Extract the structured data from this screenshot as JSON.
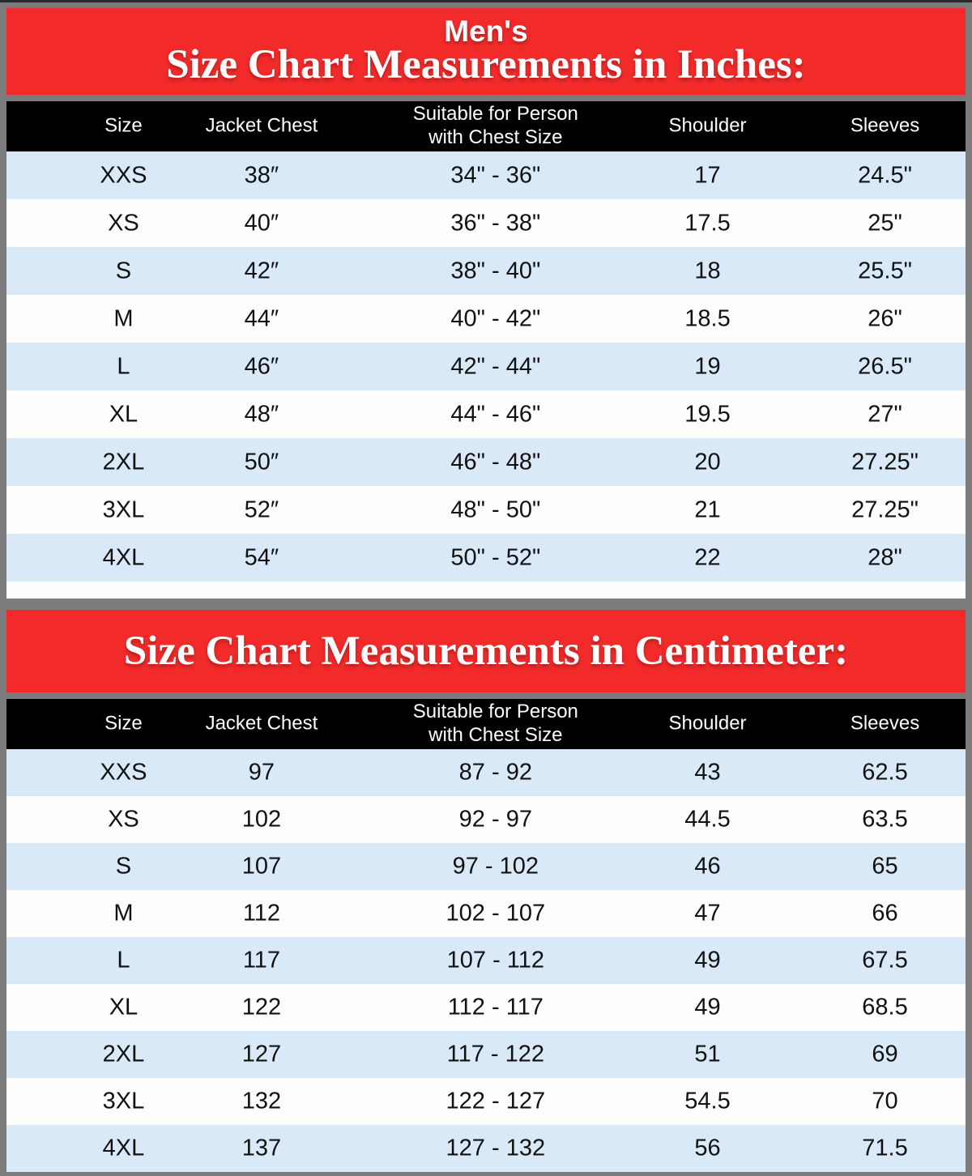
{
  "colors": {
    "frame_gray": "#7b7b7b",
    "top_edge": "#2b2b2b",
    "banner_red": "#f22a2a",
    "header_black": "#000000",
    "row_blue": "#d9e9f8",
    "row_white": "#fdfdfe",
    "banner_text": "#ffffff",
    "header_text": "#ffffff",
    "cell_text": "#111111"
  },
  "inches_section": {
    "subtitle": "Men's",
    "title": "Size Chart Measurements in Inches:",
    "columns": [
      "Size",
      "Jacket Chest",
      "Suitable for Person\nwith Chest Size",
      "Shoulder",
      "Sleeves"
    ],
    "rows": [
      [
        "XXS",
        "38″",
        "34\" - 36\"",
        "17",
        "24.5\""
      ],
      [
        "XS",
        "40″",
        "36\" - 38\"",
        "17.5",
        "25\""
      ],
      [
        "S",
        "42″",
        "38\" - 40\"",
        "18",
        "25.5\""
      ],
      [
        "M",
        "44″",
        "40\" - 42\"",
        "18.5",
        "26\""
      ],
      [
        "L",
        "46″",
        "42\" - 44\"",
        "19",
        "26.5\""
      ],
      [
        "XL",
        "48″",
        "44\" - 46\"",
        "19.5",
        "27\""
      ],
      [
        "2XL",
        "50″",
        "46\" - 48\"",
        "20",
        "27.25\""
      ],
      [
        "3XL",
        "52″",
        "48\" - 50\"",
        "21",
        "27.25\""
      ],
      [
        "4XL",
        "54″",
        "50\" - 52\"",
        "22",
        "28\""
      ]
    ]
  },
  "cm_section": {
    "title": "Size Chart Measurements in Centimeter:",
    "columns": [
      "Size",
      "Jacket Chest",
      "Suitable for Person\nwith Chest Size",
      "Shoulder",
      "Sleeves"
    ],
    "rows": [
      [
        "XXS",
        "97",
        "87 - 92",
        "43",
        "62.5"
      ],
      [
        "XS",
        "102",
        "92 - 97",
        "44.5",
        "63.5"
      ],
      [
        "S",
        "107",
        "97 - 102",
        "46",
        "65"
      ],
      [
        "M",
        "112",
        "102 - 107",
        "47",
        "66"
      ],
      [
        "L",
        "117",
        "107 - 112",
        "49",
        "67.5"
      ],
      [
        "XL",
        "122",
        "112 - 117",
        "49",
        "68.5"
      ],
      [
        "2XL",
        "127",
        "117 - 122",
        "51",
        "69"
      ],
      [
        "3XL",
        "132",
        "122 - 127",
        "54.5",
        "70"
      ],
      [
        "4XL",
        "137",
        "127 - 132",
        "56",
        "71.5"
      ]
    ]
  }
}
